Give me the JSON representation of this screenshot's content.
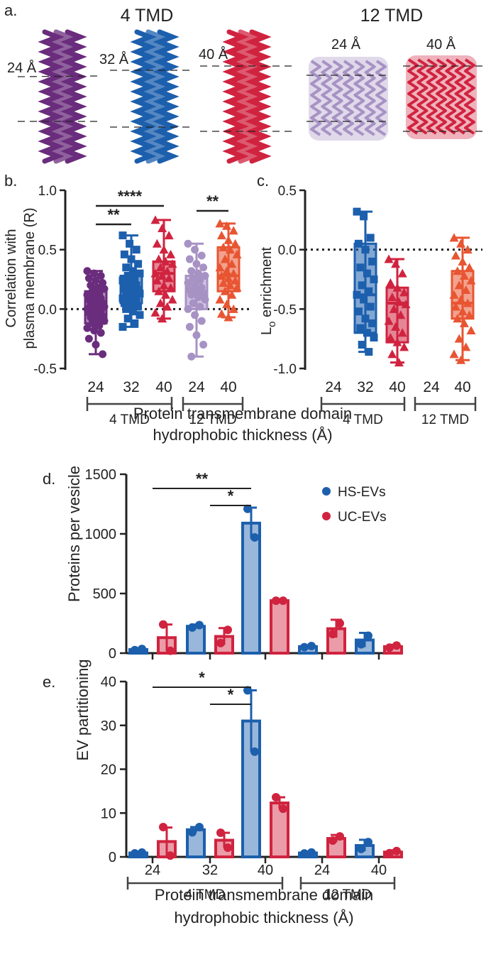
{
  "colors": {
    "purple": "#6a2c7c",
    "blue": "#1c5fad",
    "red": "#d0233f",
    "lavender": "#a792c4",
    "orange": "#e85532",
    "hs": "#1c5fad",
    "uc": "#d0233f"
  },
  "panel_a": {
    "letter": "a.",
    "header_4tmd": "4 TMD",
    "header_12tmd": "12 TMD",
    "helices": [
      {
        "label": "24 Å",
        "color": "#6a2c7c"
      },
      {
        "label": "32 Å",
        "color": "#1c5fad"
      },
      {
        "label": "40 Å",
        "color": "#d0233f"
      },
      {
        "label": "24 Å",
        "color": "#a792c4"
      },
      {
        "label": "40 Å",
        "color": "#d0233f"
      }
    ]
  },
  "panel_b": {
    "letter": "b.",
    "ylabel_line1": "Correlation with",
    "ylabel_line2": "plasma membrane (R)",
    "yticks": [
      "1.0",
      "0.5",
      "0.0",
      "-0.5"
    ],
    "xticks": [
      "24",
      "32",
      "40",
      "24",
      "40"
    ],
    "group_4tmd": "4 TMD",
    "group_12tmd": "12 TMD",
    "sig": [
      {
        "text": "**"
      },
      {
        "text": "****"
      },
      {
        "text": "**"
      }
    ]
  },
  "panel_c": {
    "letter": "c.",
    "ylabel_main": "L",
    "ylabel_sub": "o",
    "ylabel_rest": " enrichment",
    "yticks": [
      "0.5",
      "0.0",
      "-0.5",
      "-1.0"
    ],
    "xticks": [
      "24",
      "32",
      "40",
      "24",
      "40"
    ],
    "group_4tmd": "4 TMD",
    "group_12tmd": "12 TMD"
  },
  "xaxis_title_bc_line1": "Protein transmembrane domain",
  "xaxis_title_bc_line2": "hydrophobic thickness (Å)",
  "panel_d": {
    "letter": "d.",
    "ylabel": "Proteins per vesicle",
    "yticks": [
      "1500",
      "1000",
      "500",
      "0"
    ],
    "legend_hs": "HS-EVs",
    "legend_uc": "UC-EVs",
    "sig": [
      {
        "text": "**"
      },
      {
        "text": "*"
      }
    ]
  },
  "panel_e": {
    "letter": "e.",
    "ylabel": "EV partitioning",
    "yticks": [
      "40",
      "30",
      "20",
      "10",
      "0"
    ],
    "xticks": [
      "24",
      "32",
      "40",
      "24",
      "40"
    ],
    "group_4tmd": "4 TMD",
    "group_12tmd": "12 TMD",
    "sig": [
      {
        "text": "*"
      },
      {
        "text": "*"
      }
    ]
  },
  "xaxis_title_e_line1": "Protein transmembrane domain",
  "xaxis_title_e_line2": "hydrophobic thickness (Å)",
  "chart_data": [
    {
      "panel": "b",
      "type": "box",
      "ylabel": "Correlation with plasma membrane (R)",
      "ylim": [
        -0.5,
        1.0
      ],
      "categories": [
        "24 (4 TMD)",
        "32 (4 TMD)",
        "40 (4 TMD)",
        "24 (12 TMD)",
        "40 (12 TMD)"
      ],
      "series": [
        {
          "name": "24 Å 4TMD",
          "color": "#6a2c7c",
          "marker": "circle",
          "min": -0.38,
          "q1": -0.12,
          "median": 0.0,
          "q3": 0.15,
          "max": 0.32,
          "points": [
            0.32,
            0.3,
            0.28,
            0.26,
            0.24,
            0.22,
            0.2,
            0.18,
            0.17,
            0.15,
            0.13,
            0.12,
            0.1,
            0.09,
            0.08,
            0.07,
            0.05,
            0.04,
            0.03,
            0.02,
            0.01,
            0.0,
            0.0,
            -0.01,
            -0.02,
            -0.03,
            -0.05,
            -0.06,
            -0.07,
            -0.09,
            -0.1,
            -0.12,
            -0.14,
            -0.16,
            -0.18,
            -0.2,
            -0.25,
            -0.3,
            -0.38
          ]
        },
        {
          "name": "32 Å 4TMD",
          "color": "#1c5fad",
          "marker": "square",
          "min": -0.15,
          "q1": 0.05,
          "median": 0.15,
          "q3": 0.28,
          "max": 0.62,
          "points": [
            0.62,
            0.55,
            0.5,
            0.46,
            0.42,
            0.38,
            0.35,
            0.32,
            0.3,
            0.28,
            0.26,
            0.24,
            0.22,
            0.2,
            0.19,
            0.18,
            0.16,
            0.15,
            0.14,
            0.13,
            0.12,
            0.1,
            0.09,
            0.08,
            0.07,
            0.05,
            0.04,
            0.02,
            0.0,
            -0.02,
            -0.05,
            -0.08,
            -0.12,
            -0.15
          ]
        },
        {
          "name": "40 Å 4TMD",
          "color": "#d0233f",
          "marker": "triangle",
          "min": -0.08,
          "q1": 0.15,
          "median": 0.3,
          "q3": 0.4,
          "max": 0.75,
          "points": [
            0.75,
            0.68,
            0.62,
            0.55,
            0.5,
            0.46,
            0.42,
            0.4,
            0.38,
            0.35,
            0.32,
            0.3,
            0.28,
            0.26,
            0.24,
            0.2,
            0.18,
            0.15,
            0.12,
            0.08,
            0.05,
            0.02,
            -0.03,
            -0.08
          ]
        },
        {
          "name": "24 Å 12TMD",
          "color": "#a792c4",
          "marker": "circle",
          "min": -0.4,
          "q1": 0.0,
          "median": 0.15,
          "q3": 0.28,
          "max": 0.55,
          "points": [
            0.55,
            0.5,
            0.45,
            0.42,
            0.38,
            0.35,
            0.32,
            0.3,
            0.28,
            0.26,
            0.24,
            0.22,
            0.2,
            0.18,
            0.16,
            0.15,
            0.13,
            0.12,
            0.1,
            0.08,
            0.05,
            0.02,
            0.0,
            -0.05,
            -0.1,
            -0.15,
            -0.22,
            -0.3,
            -0.4
          ]
        },
        {
          "name": "40 Å 12TMD",
          "color": "#e85532",
          "marker": "triangle",
          "min": -0.07,
          "q1": 0.15,
          "median": 0.28,
          "q3": 0.52,
          "max": 0.72,
          "points": [
            0.72,
            0.7,
            0.66,
            0.62,
            0.58,
            0.55,
            0.52,
            0.5,
            0.46,
            0.42,
            0.38,
            0.35,
            0.32,
            0.3,
            0.28,
            0.26,
            0.24,
            0.22,
            0.2,
            0.18,
            0.15,
            0.12,
            0.08,
            0.04,
            0.0,
            -0.04,
            -0.07
          ]
        }
      ],
      "significance": [
        {
          "from": 1,
          "to": 2,
          "label": "**"
        },
        {
          "from": 1,
          "to": 3,
          "label": "****"
        },
        {
          "from": 4,
          "to": 5,
          "label": "**"
        }
      ]
    },
    {
      "panel": "c",
      "type": "box",
      "ylabel": "Lo enrichment",
      "ylim": [
        -1.0,
        0.5
      ],
      "categories": [
        "24 (4 TMD)",
        "32 (4 TMD)",
        "40 (4 TMD)",
        "24 (12 TMD)",
        "40 (12 TMD)"
      ],
      "series": [
        {
          "name": "32 Å 4TMD",
          "color": "#1c5fad",
          "marker": "square",
          "min": -0.86,
          "q1": -0.7,
          "median": -0.38,
          "q3": 0.05,
          "max": 0.32,
          "points": [
            0.32,
            0.28,
            0.1,
            0.05,
            0.0,
            -0.1,
            -0.15,
            -0.2,
            -0.25,
            -0.3,
            -0.35,
            -0.38,
            -0.42,
            -0.48,
            -0.52,
            -0.58,
            -0.62,
            -0.66,
            -0.7,
            -0.74,
            -0.8,
            -0.86
          ]
        },
        {
          "name": "40 Å 4TMD",
          "color": "#d0233f",
          "marker": "triangle",
          "min": -0.95,
          "q1": -0.78,
          "median": -0.45,
          "q3": -0.32,
          "max": -0.08,
          "points": [
            -0.08,
            -0.12,
            -0.2,
            -0.28,
            -0.32,
            -0.36,
            -0.4,
            -0.44,
            -0.46,
            -0.5,
            -0.55,
            -0.6,
            -0.65,
            -0.7,
            -0.74,
            -0.78,
            -0.82,
            -0.88,
            -0.95
          ]
        },
        {
          "name": "40 Å 12TMD",
          "color": "#e85532",
          "marker": "triangle",
          "min": -0.93,
          "q1": -0.58,
          "median": -0.45,
          "q3": -0.18,
          "max": 0.1,
          "points": [
            0.1,
            0.05,
            0.0,
            -0.05,
            -0.1,
            -0.15,
            -0.18,
            -0.22,
            -0.26,
            -0.3,
            -0.34,
            -0.38,
            -0.42,
            -0.45,
            -0.48,
            -0.52,
            -0.55,
            -0.58,
            -0.62,
            -0.68,
            -0.75,
            -0.82,
            -0.88,
            -0.93
          ]
        }
      ],
      "reference_line": 0.0
    },
    {
      "panel": "d",
      "type": "bar",
      "ylabel": "Proteins per vesicle",
      "ylim": [
        0,
        1500
      ],
      "categories": [
        "24 (4 TMD)",
        "32 (4 TMD)",
        "40 (4 TMD)",
        "24 (12 TMD)",
        "40 (12 TMD)"
      ],
      "series": [
        {
          "name": "HS-EVs",
          "color": "#1c5fad",
          "values": [
            30,
            225,
            1090,
            55,
            110
          ],
          "error": [
            5,
            15,
            130,
            8,
            60
          ],
          "points": [
            [
              25,
              35
            ],
            [
              215,
              235
            ],
            [
              1210,
              970
            ]
          ]
        },
        {
          "name": "UC-EVs",
          "color": "#d0233f",
          "values": [
            130,
            140,
            440,
            205,
            55
          ],
          "error": [
            110,
            70,
            8,
            75,
            15
          ],
          "points": [
            [
              240,
              20
            ],
            [
              85,
              195
            ],
            [
              440,
              440
            ]
          ]
        }
      ],
      "significance": [
        {
          "from": 1,
          "to": 3,
          "label": "**"
        },
        {
          "from": 2,
          "to": 3,
          "label": "*"
        }
      ]
    },
    {
      "panel": "e",
      "type": "bar",
      "ylabel": "EV partitioning",
      "ylim": [
        0,
        40
      ],
      "categories": [
        "24 (4 TMD)",
        "32 (4 TMD)",
        "40 (4 TMD)",
        "24 (12 TMD)",
        "40 (12 TMD)"
      ],
      "series": [
        {
          "name": "HS-EVs",
          "color": "#1c5fad",
          "values": [
            0.9,
            6.2,
            31.0,
            0.9,
            2.6
          ],
          "error": [
            0.2,
            0.6,
            7.0,
            0.2,
            1.3
          ],
          "points": [
            [
              0.8,
              1.0
            ],
            [
              5.6,
              6.8
            ],
            [
              38,
              24
            ]
          ]
        },
        {
          "name": "UC-EVs",
          "color": "#d0233f",
          "values": [
            3.5,
            3.8,
            12.3,
            4.2,
            1.1
          ],
          "error": [
            3.2,
            1.7,
            1.3,
            0.8,
            0.4
          ],
          "points": [
            [
              6.8,
              0.3
            ],
            [
              5.5,
              2.1
            ],
            [
              13.6,
              11.0
            ]
          ]
        }
      ],
      "significance": [
        {
          "from": 1,
          "to": 3,
          "label": "*"
        },
        {
          "from": 2,
          "to": 3,
          "label": "*"
        }
      ]
    }
  ]
}
